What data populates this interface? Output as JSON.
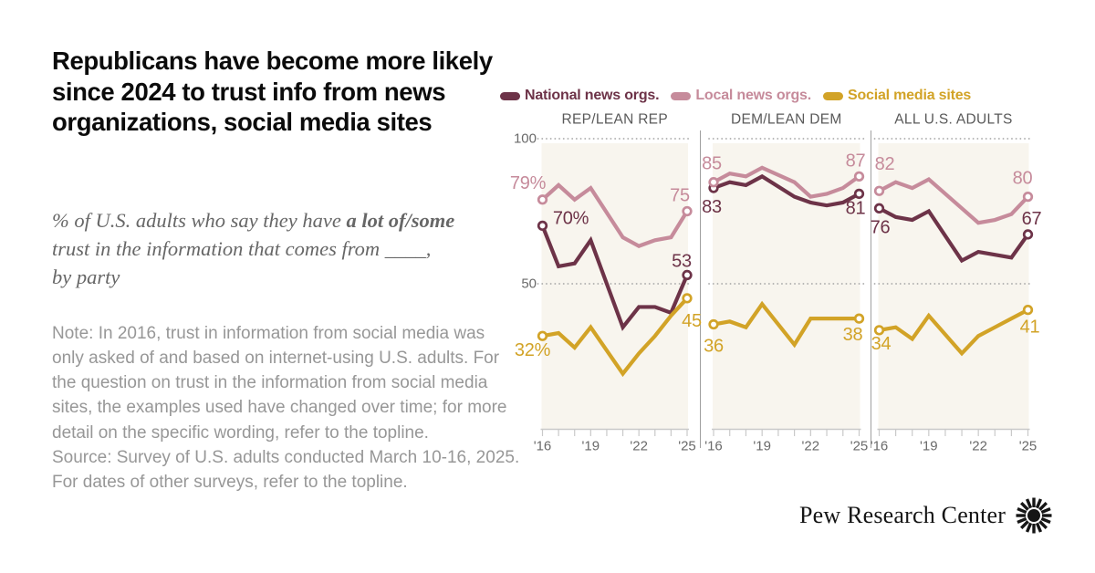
{
  "header": {
    "title": "Republicans have become more likely since 2024 to trust info from news organizations, social media sites",
    "subtitle_prefix": "% of U.S. adults who say they have ",
    "subtitle_bold": "a lot of/some",
    "subtitle_suffix": " trust in the information that comes from ____, by party"
  },
  "footer": {
    "note": "Note: In 2016, trust in information from social media was only asked of and based on internet-using U.S. adults. For the question on trust in the information from social media sites, the examples used have changed over time; for more detail on the specific wording, refer to the topline.",
    "source": "Source: Survey of U.S. adults conducted March 10-16, 2025. For dates of other surveys, refer to the topline.",
    "brand": "Pew Research Center"
  },
  "colors": {
    "national": "#6d3348",
    "local": "#c68b9b",
    "social": "#d2a327"
  },
  "legend": [
    {
      "key": "national",
      "label": "National news orgs."
    },
    {
      "key": "local",
      "label": "Local news orgs."
    },
    {
      "key": "social",
      "label": "Social media sites"
    }
  ],
  "chart_data": {
    "type": "line",
    "x": [
      2016,
      2017,
      2018,
      2019,
      2021,
      2022,
      2023,
      2024,
      2025
    ],
    "x_tick_years": [
      2016,
      2017,
      2018,
      2019,
      2020,
      2021,
      2022,
      2023,
      2024,
      2025
    ],
    "x_tick_labels": [
      {
        "year": 2016,
        "label": "'16"
      },
      {
        "year": 2019,
        "label": "'19"
      },
      {
        "year": 2022,
        "label": "'22"
      },
      {
        "year": 2025,
        "label": "'25"
      }
    ],
    "ylim": [
      0,
      100
    ],
    "gridlines": [
      {
        "value": 100,
        "label": "100"
      },
      {
        "value": 50,
        "label": "50"
      }
    ],
    "panels": [
      {
        "title": "REP/LEAN REP",
        "series": [
          {
            "key": "national",
            "name": "National news orgs.",
            "values": [
              70,
              56,
              57,
              65,
              35,
              42,
              42,
              40,
              53
            ],
            "start_label": "70%",
            "end_label": "53"
          },
          {
            "key": "local",
            "name": "Local news orgs.",
            "values": [
              79,
              84,
              79,
              83,
              66,
              63,
              65,
              66,
              75
            ],
            "start_label": "79%",
            "end_label": "75"
          },
          {
            "key": "social",
            "name": "Social media sites",
            "values": [
              32,
              33,
              28,
              35,
              19,
              26,
              32,
              39,
              45
            ],
            "start_label": "32%",
            "end_label": "45"
          }
        ]
      },
      {
        "title": "DEM/LEAN DEM",
        "series": [
          {
            "key": "national",
            "name": "National news orgs.",
            "values": [
              83,
              85,
              84,
              87,
              80,
              78,
              77,
              78,
              81
            ],
            "start_label": "83",
            "end_label": "81"
          },
          {
            "key": "local",
            "name": "Local news orgs.",
            "values": [
              85,
              88,
              87,
              90,
              85,
              80,
              81,
              83,
              87
            ],
            "start_label": "85",
            "end_label": "87"
          },
          {
            "key": "social",
            "name": "Social media sites",
            "values": [
              36,
              37,
              35,
              43,
              29,
              38,
              38,
              38,
              38
            ],
            "start_label": "36",
            "end_label": "38"
          }
        ]
      },
      {
        "title": "ALL U.S. ADULTS",
        "series": [
          {
            "key": "national",
            "name": "National news orgs.",
            "values": [
              76,
              73,
              72,
              75,
              58,
              61,
              60,
              59,
              67
            ],
            "start_label": "76",
            "end_label": "67"
          },
          {
            "key": "local",
            "name": "Local news orgs.",
            "values": [
              82,
              85,
              83,
              86,
              76,
              71,
              72,
              74,
              80
            ],
            "start_label": "82",
            "end_label": "80"
          },
          {
            "key": "social",
            "name": "Social media sites",
            "values": [
              34,
              35,
              31,
              39,
              26,
              32,
              35,
              38,
              41
            ],
            "start_label": "34",
            "end_label": "41"
          }
        ]
      }
    ]
  }
}
